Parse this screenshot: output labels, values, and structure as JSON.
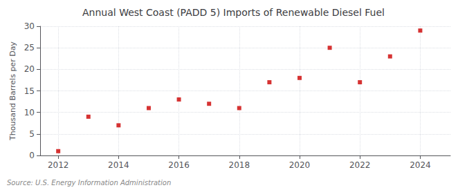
{
  "chart_data": {
    "type": "scatter",
    "title": "Annual West Coast (PADD 5) Imports of Renewable Diesel Fuel",
    "ylabel": "Thousand Barrels per Day",
    "annotation": "Source: U.S. Energy Information Administration",
    "x": [
      2012,
      2013,
      2014,
      2015,
      2016,
      2017,
      2018,
      2019,
      2020,
      2021,
      2022,
      2023,
      2024
    ],
    "values": [
      1.0,
      9.0,
      7.0,
      11.0,
      13.0,
      12.0,
      11.0,
      17.0,
      18.0,
      25.0,
      17.0,
      23.0,
      29.0
    ],
    "color": "#cc0000",
    "marker": "square",
    "xlim": [
      2011.4,
      2025.0
    ],
    "ylim": [
      0,
      30
    ],
    "xticks": [
      2012,
      2014,
      2016,
      2018,
      2020,
      2022,
      2024
    ],
    "yticks": [
      0,
      5,
      10,
      15,
      20,
      25,
      30
    ],
    "grid": true
  }
}
